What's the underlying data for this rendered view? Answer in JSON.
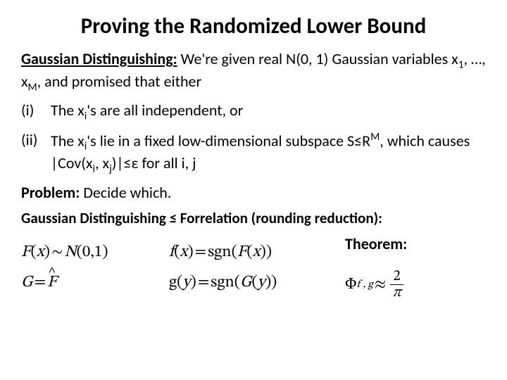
{
  "title": "Proving the Randomized Lower Bound",
  "intro_label": "Gaussian Distinguishing:",
  "intro_text": " We're given real N(0, 1) Gaussian variables x",
  "intro_sub1": "1",
  "intro_mid": ", …, x",
  "intro_subM": "M",
  "intro_tail": ", and promised that either",
  "item_i_num": "(i)",
  "item_i_a": "The x",
  "item_i_sub": "i",
  "item_i_b": "'s are all independent, or",
  "item_ii_num": "(ii)",
  "item_ii_a": "The x",
  "item_ii_sub": "i",
  "item_ii_b": "'s lie in a fixed low-dimensional subspace S≤R",
  "item_ii_supM": "M",
  "item_ii_c": ", which causes |Cov(x",
  "item_ii_sub_i": "i",
  "item_ii_d": ", x",
  "item_ii_sub_j": "j",
  "item_ii_e": ")|≤ε for all i, j",
  "problem_label": "Problem:",
  "problem_text": " Decide which.",
  "reduction": "Gaussian Distinguishing ≤ Forrelation (rounding reduction):",
  "theorem": "Theorem:",
  "formulas": {
    "F_lhs": "F",
    "tilde": "∼",
    "N01": " N",
    "N01_args": "(0,1)",
    "f_lhs": "f",
    "sgn": "sgn",
    "G_lhs": "G",
    "Fhat": "F",
    "g_lhs": "g",
    "Phi": "Φ",
    "phi_sub": "f , g",
    "approx": "≈",
    "two": "2",
    "pi": "π"
  }
}
